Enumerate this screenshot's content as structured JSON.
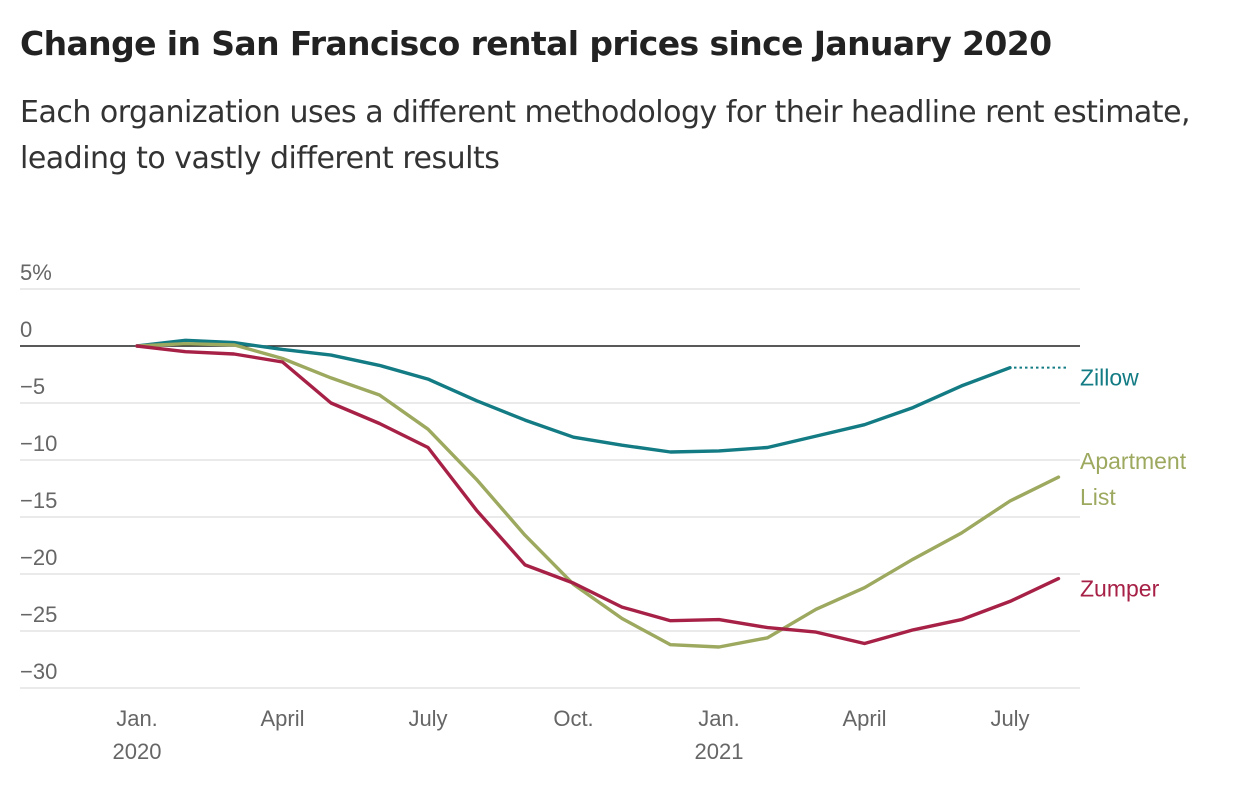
{
  "header": {
    "title": "Change in San Francisco rental prices since January 2020",
    "subtitle": "Each organization uses a different methodology for their headline rent estimate, leading to vastly different results"
  },
  "chart_data": {
    "type": "line",
    "title": "Change in San Francisco rental prices since January 2020",
    "subtitle": "Each organization uses a different methodology for their headline rent estimate, leading to vastly different results",
    "xlabel": "",
    "ylabel": "",
    "ylim": [
      -30,
      5
    ],
    "y_unit": "%",
    "yticks": [
      {
        "value": 5,
        "label": "5%"
      },
      {
        "value": 0,
        "label": "0"
      },
      {
        "value": -5,
        "label": "−5"
      },
      {
        "value": -10,
        "label": "−10"
      },
      {
        "value": -15,
        "label": "−15"
      },
      {
        "value": -20,
        "label": "−20"
      },
      {
        "value": -25,
        "label": "−25"
      },
      {
        "value": -30,
        "label": "−30"
      }
    ],
    "x": [
      "2020-01",
      "2020-02",
      "2020-03",
      "2020-04",
      "2020-05",
      "2020-06",
      "2020-07",
      "2020-08",
      "2020-09",
      "2020-10",
      "2020-11",
      "2020-12",
      "2021-01",
      "2021-02",
      "2021-03",
      "2021-04",
      "2021-05",
      "2021-06",
      "2021-07",
      "2021-08"
    ],
    "xticks": [
      {
        "x": "2020-01",
        "line1": "Jan.",
        "line2": "2020"
      },
      {
        "x": "2020-04",
        "line1": "April",
        "line2": ""
      },
      {
        "x": "2020-07",
        "line1": "July",
        "line2": ""
      },
      {
        "x": "2020-10",
        "line1": "Oct.",
        "line2": ""
      },
      {
        "x": "2021-01",
        "line1": "Jan.",
        "line2": "2021"
      },
      {
        "x": "2021-04",
        "line1": "April",
        "line2": ""
      },
      {
        "x": "2021-07",
        "line1": "July",
        "line2": ""
      }
    ],
    "grid": true,
    "series": [
      {
        "name": "Zillow",
        "label_lines": [
          "Zillow"
        ],
        "color": "#137b83",
        "values": [
          0,
          0.5,
          0.3,
          -0.3,
          -0.8,
          -1.7,
          -2.9,
          -4.8,
          -6.5,
          -8.0,
          -8.7,
          -9.3,
          -9.2,
          -8.9,
          -7.9,
          -6.9,
          -5.4,
          -3.5,
          -1.9,
          null
        ],
        "dotted_extension_to_end": true
      },
      {
        "name": "Apartment List",
        "label_lines": [
          "Apartment",
          "List"
        ],
        "color": "#9ca95f",
        "values": [
          0,
          0.2,
          0.1,
          -1.1,
          -2.8,
          -4.3,
          -7.3,
          -11.7,
          -16.6,
          -20.9,
          -23.9,
          -26.2,
          -26.4,
          -25.6,
          -23.1,
          -21.2,
          -18.7,
          -16.4,
          -13.6,
          -11.5
        ]
      },
      {
        "name": "Zumper",
        "label_lines": [
          "Zumper"
        ],
        "color": "#a72147",
        "values": [
          0,
          -0.5,
          -0.7,
          -1.4,
          -5.0,
          -6.8,
          -8.9,
          -14.4,
          -19.2,
          -20.8,
          -22.9,
          -24.1,
          -24.0,
          -24.7,
          -25.1,
          -26.1,
          -24.9,
          -24.0,
          -22.4,
          -20.4
        ]
      }
    ]
  }
}
